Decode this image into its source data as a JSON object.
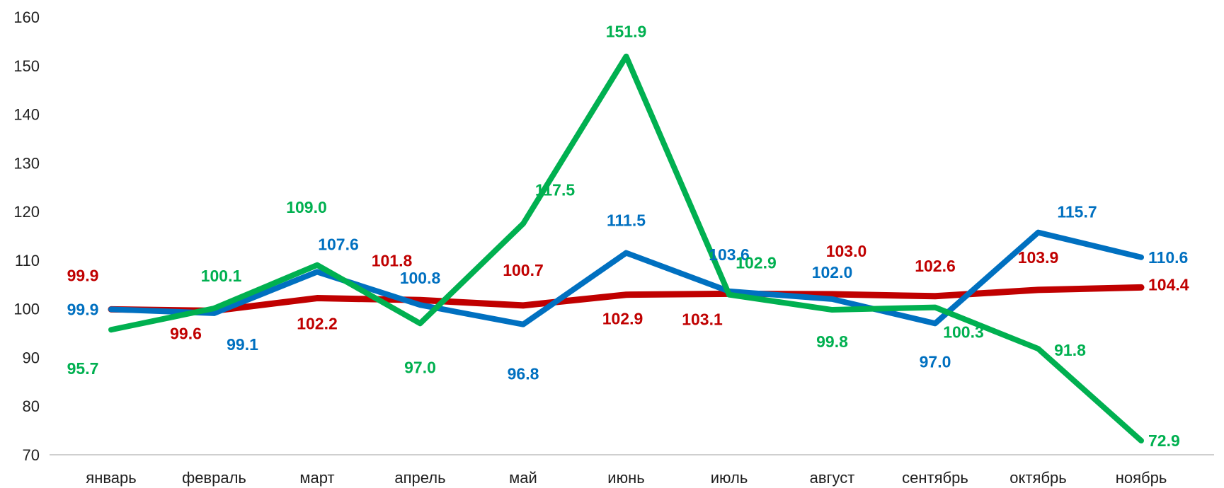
{
  "chart_data": {
    "type": "line",
    "title": "",
    "xlabel": "",
    "ylabel": "",
    "categories": [
      "январь",
      "февраль",
      "март",
      "апрель",
      "май",
      "июнь",
      "июль",
      "август",
      "сентябрь",
      "октябрь",
      "ноябрь"
    ],
    "ylim": [
      70,
      160
    ],
    "yticks": [
      70,
      80,
      90,
      100,
      110,
      120,
      130,
      140,
      150,
      160
    ],
    "grid": false,
    "legend": "none",
    "series": [
      {
        "color": "#C00000",
        "values": [
          99.9,
          99.6,
          102.2,
          101.8,
          100.7,
          102.9,
          103.1,
          103.0,
          102.6,
          103.9,
          104.4
        ],
        "labels": [
          "99.9",
          "99.6",
          "102.2",
          "101.8",
          "100.7",
          "102.9",
          "103.1",
          "103.0",
          "102.6",
          "103.9",
          "104.4"
        ]
      },
      {
        "color": "#0070C0",
        "values": [
          99.9,
          99.1,
          107.6,
          100.8,
          96.8,
          111.5,
          103.6,
          102.0,
          97.0,
          115.7,
          110.6
        ],
        "labels": [
          "99.9",
          "99.1",
          "107.6",
          "100.8",
          "96.8",
          "111.5",
          "103.6",
          "102.0",
          "97.0",
          "115.7",
          "110.6"
        ]
      },
      {
        "color": "#00B050",
        "values": [
          95.7,
          100.1,
          109.0,
          97.0,
          117.5,
          151.9,
          102.9,
          99.8,
          100.3,
          91.8,
          72.9
        ],
        "labels": [
          "95.7",
          "100.1",
          "109.0",
          "97.0",
          "117.5",
          "151.9",
          "102.9",
          "99.8",
          "100.3",
          "91.8",
          "72.9"
        ]
      }
    ]
  }
}
